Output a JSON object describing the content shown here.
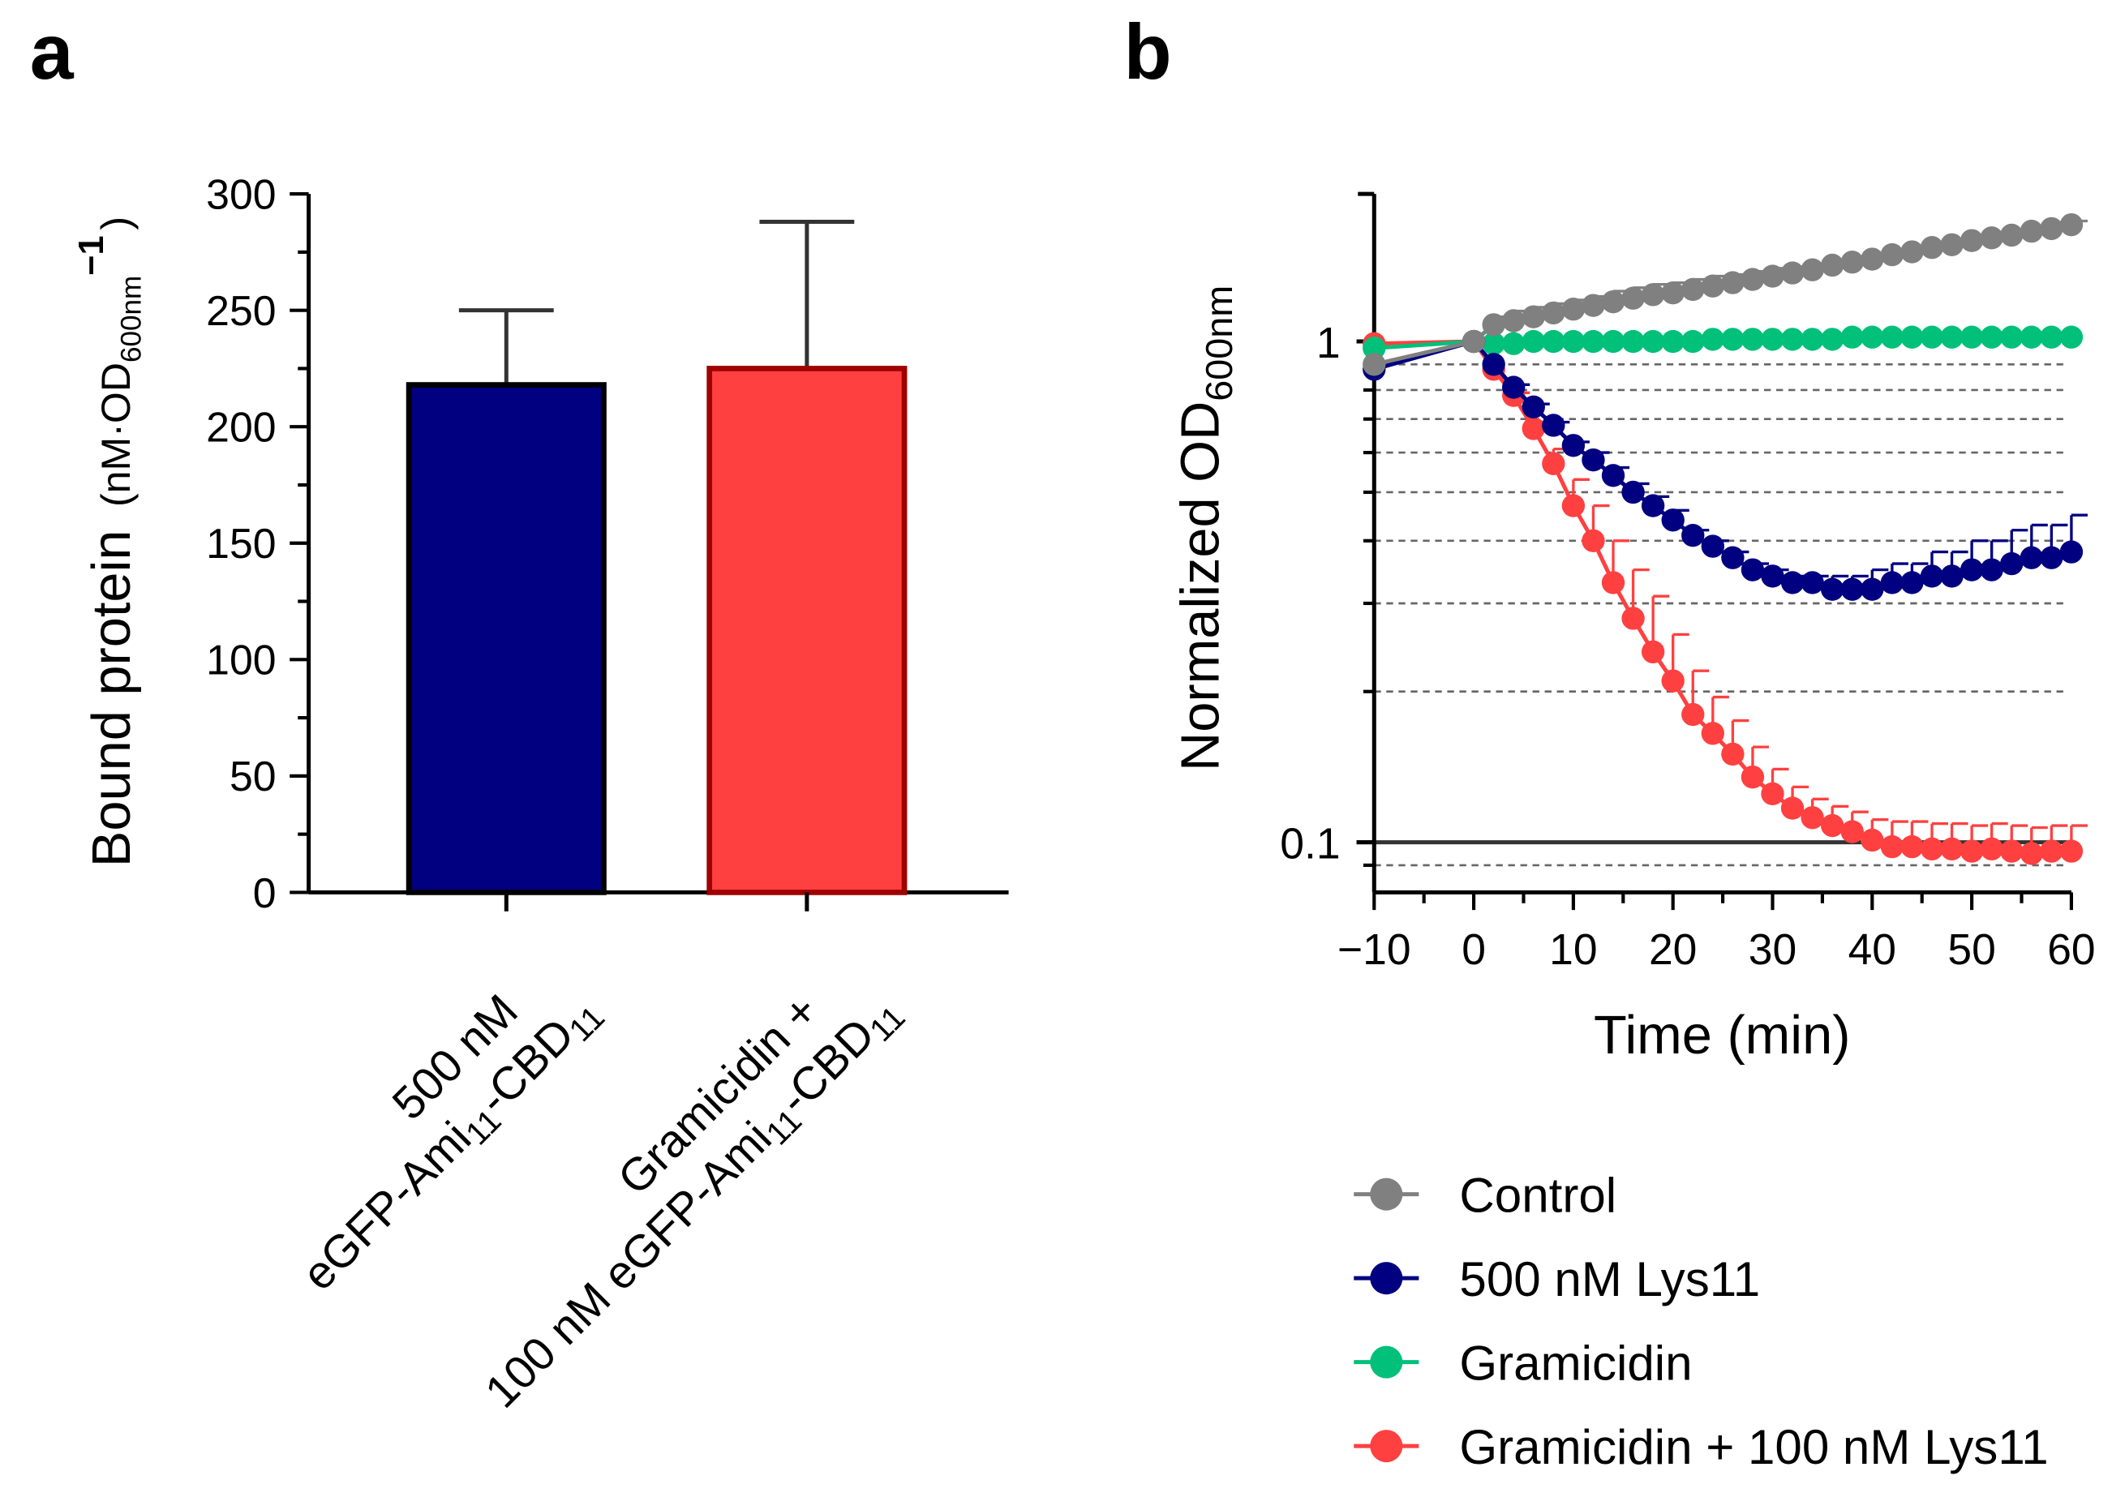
{
  "panel_labels": [
    "a",
    "b"
  ],
  "colors": {
    "control": "#808080",
    "lys": "#000080",
    "gram": "#00C07A",
    "gramlys": "#FF4040",
    "bar_red_edge": "#A00000"
  },
  "chart_data": [
    {
      "type": "bar",
      "title": "",
      "ylabel_main": "Bound protein",
      "ylabel_unit": "(nM·OD",
      "ylabel_sub": "600nm",
      "ylabel_sup": "−1",
      "ylabel_close": ")",
      "ylim": [
        0,
        300
      ],
      "yticks": [
        "0",
        "50",
        "100",
        "150",
        "200",
        "250",
        "300"
      ],
      "categories": [
        {
          "line1": "500 nM",
          "line2a": "eGFP-Ami",
          "sub1": "11",
          "line2b": "-CBD",
          "sub2": "11"
        },
        {
          "line1": "Gramicidin +",
          "line2a": "100 nM eGFP-Ami",
          "sub1": "11",
          "line2b": "-CBD",
          "sub2": "11"
        }
      ],
      "values": [
        218,
        225
      ],
      "errors": [
        32,
        63
      ]
    },
    {
      "type": "line",
      "xlabel": "Time (min)",
      "ylabel_main": "Normalized OD",
      "ylabel_sub": "600nm",
      "yscale": "log",
      "ylim": [
        0.085,
        2
      ],
      "xlim": [
        -10,
        60
      ],
      "xticks": [
        "−10",
        "0",
        "10",
        "20",
        "30",
        "40",
        "50",
        "60"
      ],
      "yticks": [
        "0.1",
        "1"
      ],
      "reference_line": 0.1,
      "dashed_gridlines": [
        0.9,
        0.8,
        0.7,
        0.6,
        0.5,
        0.4,
        0.3,
        0.2,
        0.09
      ],
      "x": [
        -10,
        0,
        2,
        4,
        6,
        8,
        10,
        12,
        14,
        16,
        18,
        20,
        22,
        24,
        26,
        28,
        30,
        32,
        34,
        36,
        38,
        40,
        42,
        44,
        46,
        48,
        50,
        52,
        54,
        56,
        58,
        60
      ],
      "series": [
        {
          "name": "Control",
          "key": "control",
          "values": [
            0.9,
            1.0,
            1.08,
            1.1,
            1.12,
            1.14,
            1.16,
            1.18,
            1.2,
            1.22,
            1.24,
            1.25,
            1.27,
            1.29,
            1.31,
            1.33,
            1.35,
            1.37,
            1.39,
            1.42,
            1.44,
            1.46,
            1.49,
            1.51,
            1.54,
            1.56,
            1.59,
            1.61,
            1.63,
            1.66,
            1.68,
            1.71
          ],
          "errors": [
            0,
            0,
            0.04,
            0.05,
            0.05,
            0.05,
            0.05,
            0.05,
            0.06,
            0.06,
            0.06,
            0.06,
            0.06,
            0.06,
            0.05,
            0.05,
            0.05,
            0.04,
            0.04,
            0.03,
            0.03,
            0.03,
            0.02,
            0.02,
            0.02,
            0.02,
            0.02,
            0.02,
            0.02,
            0.03,
            0.04,
            0.03
          ]
        },
        {
          "name": "500 nM Lys11",
          "key": "lys",
          "values": [
            0.88,
            1.0,
            0.9,
            0.81,
            0.74,
            0.68,
            0.62,
            0.58,
            0.54,
            0.5,
            0.47,
            0.44,
            0.41,
            0.39,
            0.37,
            0.35,
            0.34,
            0.33,
            0.33,
            0.32,
            0.32,
            0.32,
            0.33,
            0.33,
            0.34,
            0.34,
            0.35,
            0.35,
            0.36,
            0.37,
            0.37,
            0.38
          ],
          "errors": [
            0,
            0,
            0,
            0.01,
            0.01,
            0.01,
            0.01,
            0.02,
            0.02,
            0.02,
            0.02,
            0.02,
            0.01,
            0.01,
            0.01,
            0.01,
            0.01,
            0.01,
            0.01,
            0.02,
            0.02,
            0.03,
            0.03,
            0.03,
            0.04,
            0.04,
            0.05,
            0.05,
            0.06,
            0.06,
            0.06,
            0.07
          ]
        },
        {
          "name": "Gramicidin",
          "key": "gram",
          "values": [
            0.97,
            1.0,
            0.99,
            0.99,
            1.0,
            1.0,
            1.0,
            1.0,
            1.0,
            1.0,
            1.0,
            1.0,
            1.0,
            1.01,
            1.01,
            1.01,
            1.01,
            1.01,
            1.01,
            1.01,
            1.02,
            1.02,
            1.02,
            1.02,
            1.02,
            1.02,
            1.02,
            1.02,
            1.02,
            1.02,
            1.02,
            1.02
          ],
          "errors": [
            0,
            0,
            0,
            0,
            0,
            0,
            0,
            0,
            0,
            0,
            0,
            0,
            0,
            0,
            0,
            0,
            0,
            0,
            0,
            0,
            0,
            0,
            0,
            0,
            0,
            0,
            0,
            0,
            0,
            0,
            0,
            0
          ]
        },
        {
          "name": "Gramicidin + 100 nM Lys11",
          "key": "gramlys",
          "values": [
            0.99,
            1.0,
            0.88,
            0.78,
            0.67,
            0.57,
            0.47,
            0.4,
            0.33,
            0.28,
            0.24,
            0.21,
            0.18,
            0.165,
            0.15,
            0.135,
            0.125,
            0.117,
            0.112,
            0.108,
            0.105,
            0.101,
            0.098,
            0.098,
            0.097,
            0.097,
            0.096,
            0.097,
            0.096,
            0.095,
            0.096,
            0.096
          ],
          "errors": [
            0,
            0,
            0,
            0.01,
            0.02,
            0.04,
            0.06,
            0.07,
            0.07,
            0.07,
            0.07,
            0.05,
            0.04,
            0.03,
            0.025,
            0.02,
            0.015,
            0.012,
            0.01,
            0.01,
            0.01,
            0.01,
            0.012,
            0.012,
            0.012,
            0.012,
            0.012,
            0.012,
            0.012,
            0.012,
            0.012,
            0.012
          ]
        }
      ],
      "legend_position": "bottom"
    }
  ]
}
